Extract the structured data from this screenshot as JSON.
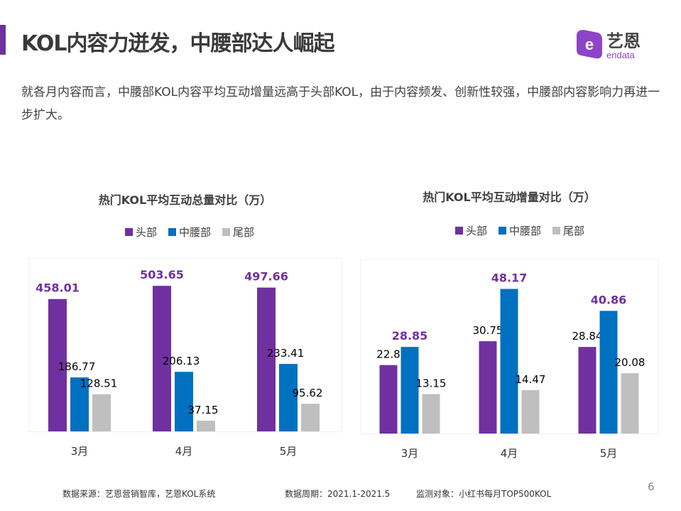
{
  "header": {
    "title": "KOL内容力迸发，中腰部达人崛起",
    "logo_text": "艺恩",
    "logo_sub": "endata"
  },
  "description": "就各月内容而言，中腰部KOL内容平均互动增量远高于头部KOL，由于内容频发、创新性较强，中腰部内容影响力再进一步扩大。",
  "colors": {
    "头部": "#7030a0",
    "中腰部": "#0070c0",
    "尾部": "#bfbfbf",
    "accent": "#7030a0"
  },
  "chart_data": [
    {
      "type": "bar",
      "title": "热门KOL平均互动总量对比（万）",
      "categories": [
        "3月",
        "4月",
        "5月"
      ],
      "series": [
        {
          "name": "头部",
          "values": [
            458.01,
            503.65,
            497.66
          ]
        },
        {
          "name": "中腰部",
          "values": [
            186.77,
            206.13,
            233.41
          ]
        },
        {
          "name": "尾部",
          "values": [
            128.51,
            37.15,
            95.62
          ]
        }
      ],
      "highlight_series": "头部",
      "legend": "top",
      "grid": false,
      "ylim": [
        0,
        600
      ]
    },
    {
      "type": "bar",
      "title": "热门KOL平均互动增量对比（万）",
      "categories": [
        "3月",
        "4月",
        "5月"
      ],
      "series": [
        {
          "name": "头部",
          "values": [
            22.8,
            30.75,
            28.84
          ]
        },
        {
          "name": "中腰部",
          "values": [
            28.85,
            48.17,
            40.86
          ]
        },
        {
          "name": "尾部",
          "values": [
            13.15,
            14.47,
            20.08
          ]
        }
      ],
      "highlight_series": "中腰部",
      "legend": "top",
      "grid": false,
      "ylim": [
        0,
        58
      ]
    }
  ],
  "footer": {
    "source": "数据来源：艺恩营销智库，艺恩KOL系统",
    "period": "数据周期：2021.1-2021.5",
    "target": "监测对象：小红书每月TOP500KOL",
    "page": "6"
  }
}
